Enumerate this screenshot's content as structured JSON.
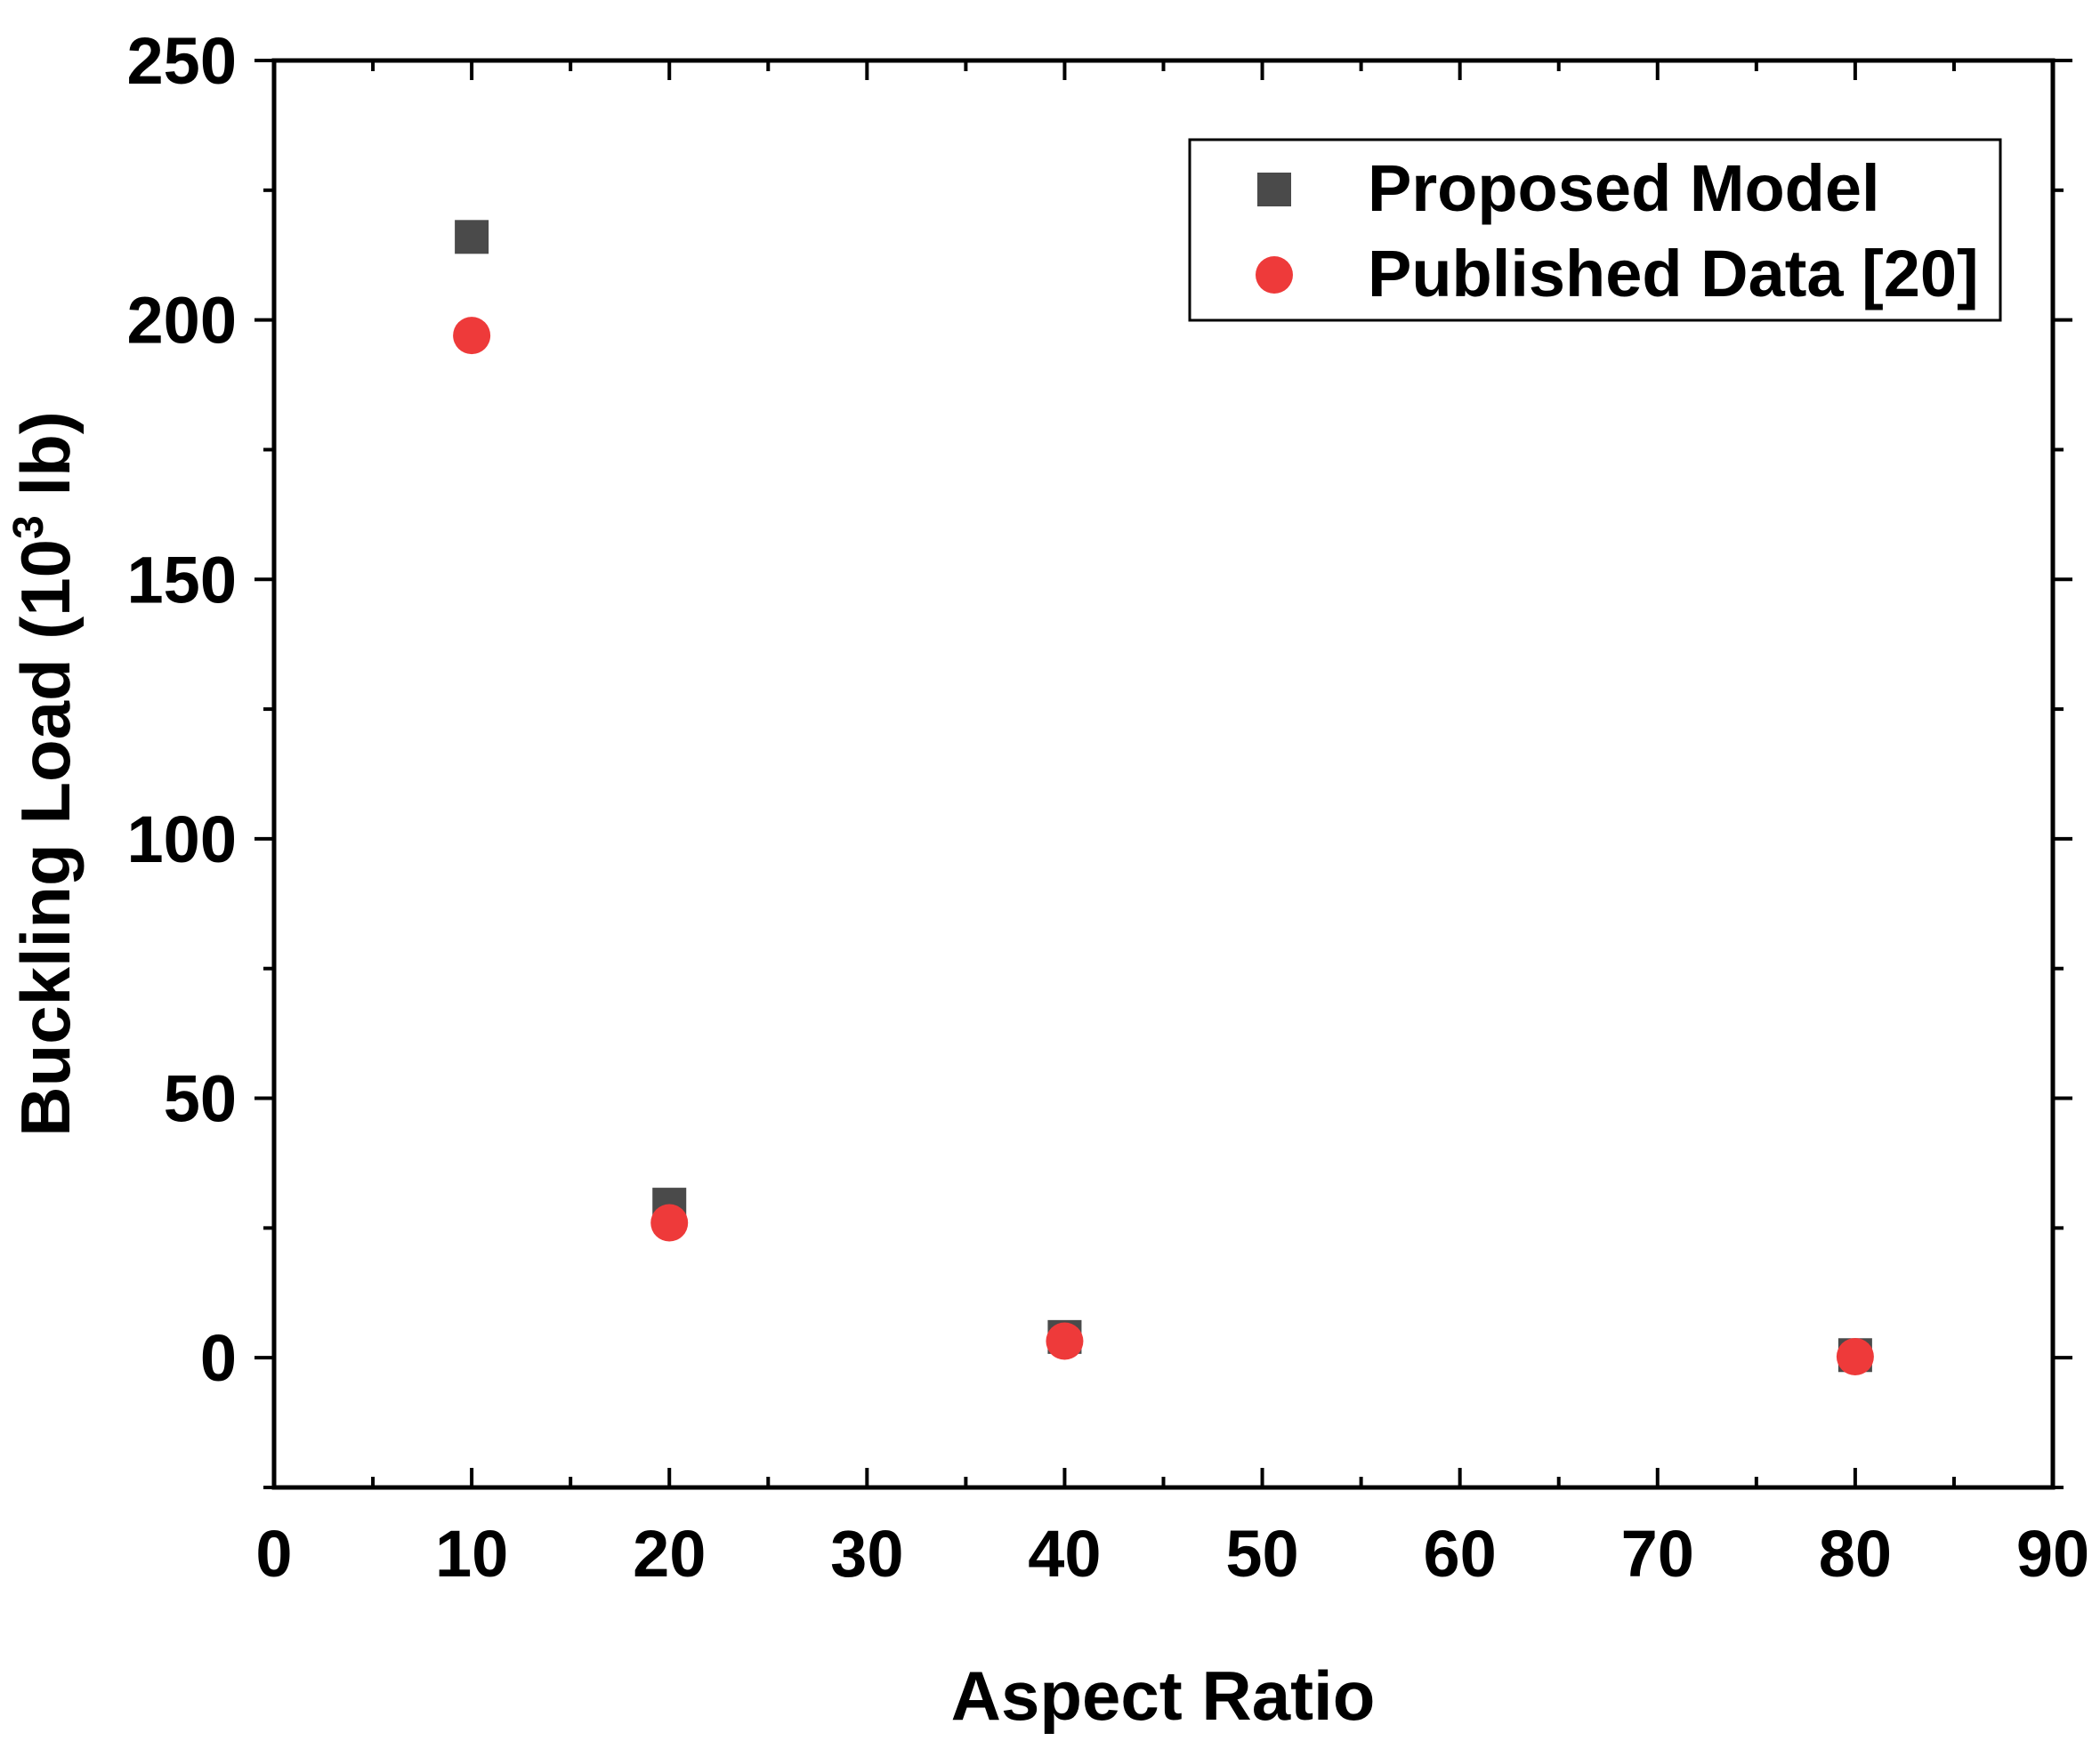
{
  "chart_data": {
    "type": "scatter",
    "xlabel": "Aspect Ratio",
    "ylabel_main": "Buckling Load (10",
    "ylabel_sup": "3",
    "ylabel_end": " lb)",
    "xlim": [
      0,
      90
    ],
    "ylim": [
      -25,
      250
    ],
    "xticks": [
      0,
      10,
      20,
      30,
      40,
      50,
      60,
      70,
      80,
      90
    ],
    "yticks": [
      0,
      50,
      100,
      150,
      200,
      250
    ],
    "x_minor_step": 5,
    "y_minor_step": 25,
    "grid": false,
    "legend_position": "top-right",
    "series": [
      {
        "name": "Proposed Model",
        "marker": "square",
        "color": "#4a4a4a",
        "x": [
          10,
          20,
          40,
          80
        ],
        "y": [
          216,
          29.5,
          4,
          0.5
        ]
      },
      {
        "name": "Published Data [20]",
        "marker": "circle",
        "color": "#ee3a3a",
        "x": [
          10,
          20,
          40,
          80
        ],
        "y": [
          197,
          26,
          3.2,
          0.2
        ]
      }
    ]
  }
}
